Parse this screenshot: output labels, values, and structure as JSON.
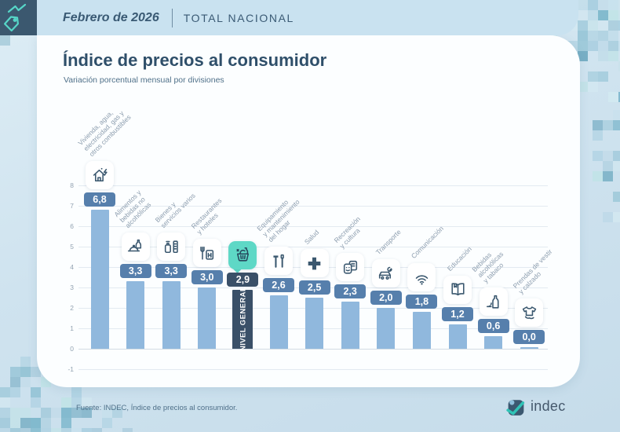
{
  "header": {
    "period": "Febrero de 2026",
    "scope": "TOTAL NACIONAL"
  },
  "title": "Índice de precios al consumidor",
  "subtitle": "Variación porcentual mensual por divisiones",
  "footer": {
    "source": "Fuente: INDEC, Índice de precios al consumidor.",
    "brand": "indec"
  },
  "colors": {
    "bar": "#90b8dd",
    "value_badge": "#567fac",
    "highlight": "#3a5068",
    "highlight_icon_bg": "#5ed8c6",
    "accent_teal": "#56d6c8",
    "navy": "#3b586f",
    "header_band": "#c9e2f0"
  },
  "chart_data": {
    "type": "bar",
    "title": "Índice de precios al consumidor",
    "subtitle": "Variación porcentual mensual por divisiones",
    "ylabel": "",
    "xlabel": "",
    "ylim": [
      -1,
      8
    ],
    "yticks": [
      8,
      7,
      6,
      5,
      4,
      3,
      2,
      1,
      0,
      -1
    ],
    "grid": true,
    "value_format": "comma-decimal",
    "categories": [
      {
        "label": "Vivienda, agua,\nelectricidad, gas y\notros combustibles",
        "value": 6.8,
        "display": "6,8",
        "icon": "house-energy-icon",
        "highlight": false
      },
      {
        "label": "Alimentos y\nbebidas no\nalcohólicas",
        "value": 3.3,
        "display": "3,3",
        "icon": "food-icon",
        "highlight": false
      },
      {
        "label": "Bienes y\nservicios varios",
        "value": 3.3,
        "display": "3,3",
        "icon": "goods-icon",
        "highlight": false
      },
      {
        "label": "Restaurantes\ny hoteles",
        "value": 3.0,
        "display": "3,0",
        "icon": "restaurant-hotel-icon",
        "highlight": false
      },
      {
        "label": "",
        "value": 2.9,
        "display": "2,9",
        "icon": "basket-icon",
        "highlight": true,
        "bar_label": "NIVEL GENERAL"
      },
      {
        "label": "Equipamiento\ny mantenimiento\ndel hogar",
        "value": 2.6,
        "display": "2,6",
        "icon": "tools-icon",
        "highlight": false
      },
      {
        "label": "Salud",
        "value": 2.5,
        "display": "2,5",
        "icon": "health-cross-icon",
        "highlight": false
      },
      {
        "label": "Recreación\ny cultura",
        "value": 2.3,
        "display": "2,3",
        "icon": "culture-masks-icon",
        "highlight": false
      },
      {
        "label": "Transporte",
        "value": 2.0,
        "display": "2,0",
        "icon": "car-icon",
        "highlight": false
      },
      {
        "label": "Comunicación",
        "value": 1.8,
        "display": "1,8",
        "icon": "wifi-icon",
        "highlight": false
      },
      {
        "label": "Educación",
        "value": 1.2,
        "display": "1,2",
        "icon": "book-icon",
        "highlight": false
      },
      {
        "label": "Bebidas\nalcohólicas\ny tabaco",
        "value": 0.6,
        "display": "0,6",
        "icon": "bottle-icon",
        "highlight": false
      },
      {
        "label": "Prendas de vestir\ny calzado",
        "value": 0.0,
        "display": "0,0",
        "icon": "tshirt-icon",
        "highlight": false
      }
    ]
  }
}
